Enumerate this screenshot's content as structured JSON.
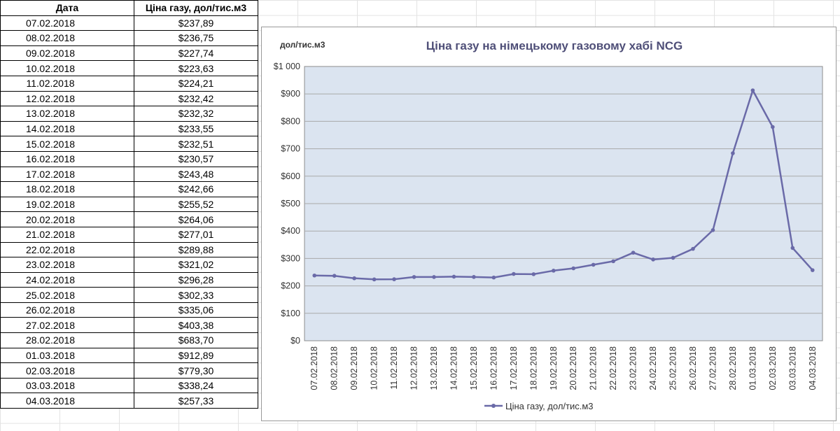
{
  "table": {
    "headers": [
      "Дата",
      "Ціна газу, дол/тис.м3"
    ],
    "rows": [
      [
        "07.02.2018",
        "$237,89"
      ],
      [
        "08.02.2018",
        "$236,75"
      ],
      [
        "09.02.2018",
        "$227,74"
      ],
      [
        "10.02.2018",
        "$223,63"
      ],
      [
        "11.02.2018",
        "$224,21"
      ],
      [
        "12.02.2018",
        "$232,42"
      ],
      [
        "13.02.2018",
        "$232,32"
      ],
      [
        "14.02.2018",
        "$233,55"
      ],
      [
        "15.02.2018",
        "$232,51"
      ],
      [
        "16.02.2018",
        "$230,57"
      ],
      [
        "17.02.2018",
        "$243,48"
      ],
      [
        "18.02.2018",
        "$242,66"
      ],
      [
        "19.02.2018",
        "$255,52"
      ],
      [
        "20.02.2018",
        "$264,06"
      ],
      [
        "21.02.2018",
        "$277,01"
      ],
      [
        "22.02.2018",
        "$289,88"
      ],
      [
        "23.02.2018",
        "$321,02"
      ],
      [
        "24.02.2018",
        "$296,28"
      ],
      [
        "25.02.2018",
        "$302,33"
      ],
      [
        "26.02.2018",
        "$335,06"
      ],
      [
        "27.02.2018",
        "$403,38"
      ],
      [
        "28.02.2018",
        "$683,70"
      ],
      [
        "01.03.2018",
        "$912,89"
      ],
      [
        "02.03.2018",
        "$779,30"
      ],
      [
        "03.03.2018",
        "$338,24"
      ],
      [
        "04.03.2018",
        "$257,33"
      ]
    ]
  },
  "chart_data": {
    "type": "line",
    "title": "Ціна газу на німецькому газовому хабі NCG",
    "ylabel": "дол/тис.м3",
    "xlabel": "",
    "legend": "bottom",
    "grid": true,
    "ylim": [
      0,
      1000
    ],
    "yticks": [
      "$0",
      "$100",
      "$200",
      "$300",
      "$400",
      "$500",
      "$600",
      "$700",
      "$800",
      "$900",
      "$1 000"
    ],
    "categories": [
      "07.02.2018",
      "08.02.2018",
      "09.02.2018",
      "10.02.2018",
      "11.02.2018",
      "12.02.2018",
      "13.02.2018",
      "14.02.2018",
      "15.02.2018",
      "16.02.2018",
      "17.02.2018",
      "18.02.2018",
      "19.02.2018",
      "20.02.2018",
      "21.02.2018",
      "22.02.2018",
      "23.02.2018",
      "24.02.2018",
      "25.02.2018",
      "26.02.2018",
      "27.02.2018",
      "28.02.2018",
      "01.03.2018",
      "02.03.2018",
      "03.03.2018",
      "04.03.2018"
    ],
    "series": [
      {
        "name": "Ціна газу, дол/тис.м3",
        "color": "#6a6aa8",
        "values": [
          237.89,
          236.75,
          227.74,
          223.63,
          224.21,
          232.42,
          232.32,
          233.55,
          232.51,
          230.57,
          243.48,
          242.66,
          255.52,
          264.06,
          277.01,
          289.88,
          321.02,
          296.28,
          302.33,
          335.06,
          403.38,
          683.7,
          912.89,
          779.3,
          338.24,
          257.33
        ]
      }
    ],
    "plot_bg": "#dbe4f0"
  }
}
